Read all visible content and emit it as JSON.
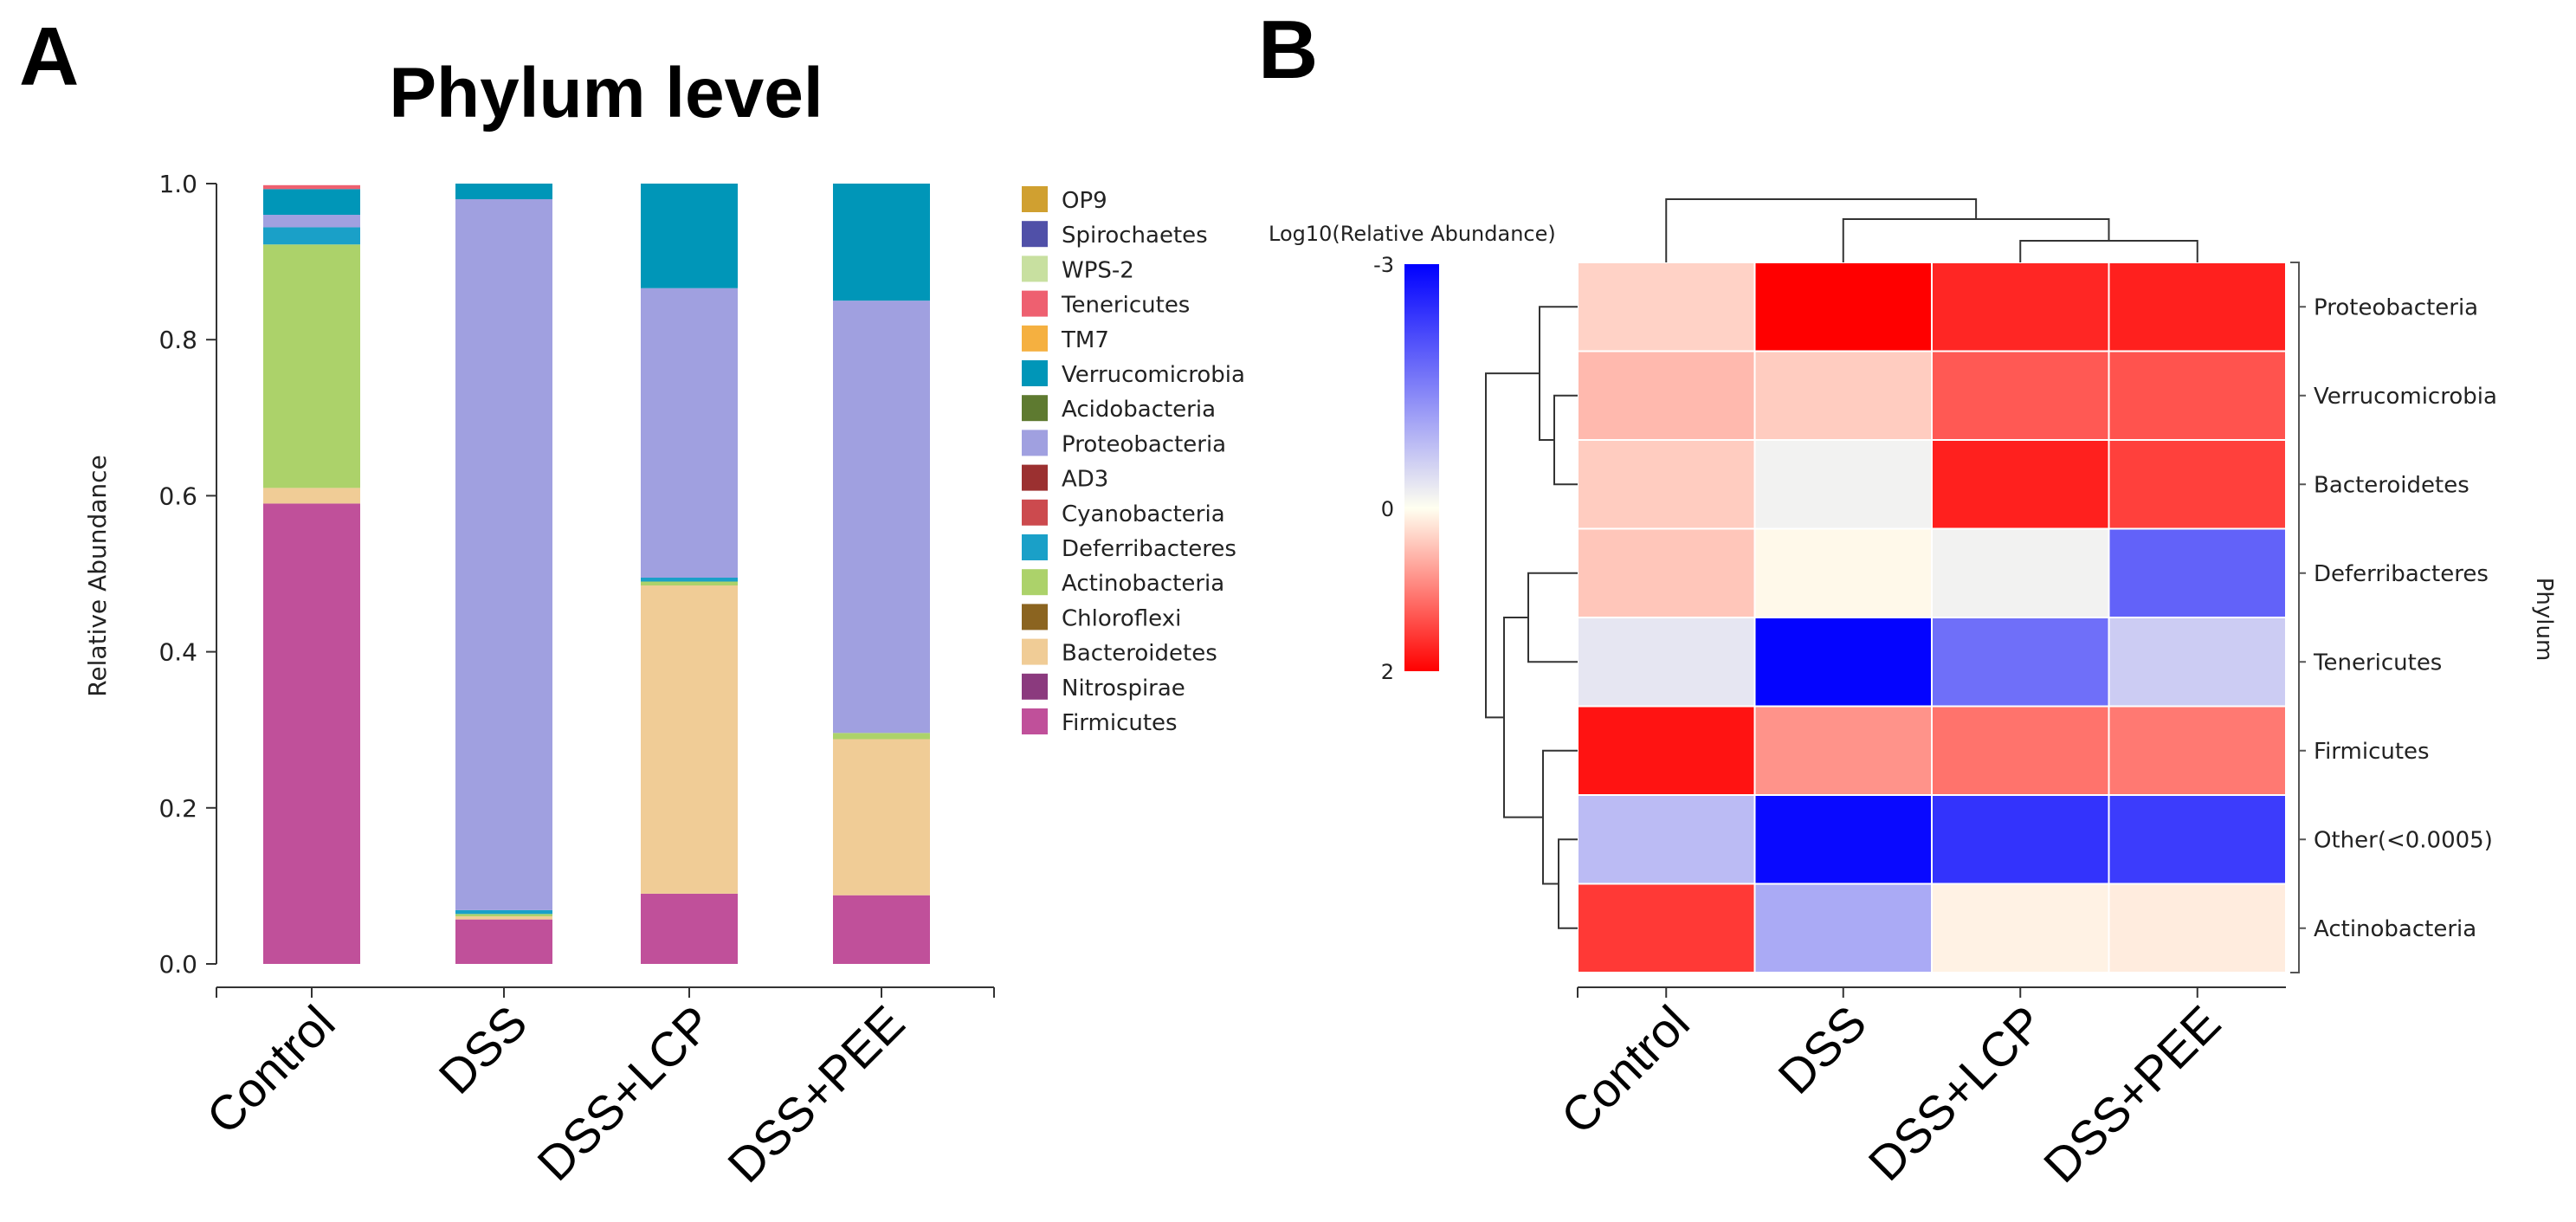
{
  "panel_a_letter": "A",
  "panel_b_letter": "B",
  "chart_data": [
    {
      "type": "bar",
      "stacked": true,
      "title": "Phylum level",
      "xlabel": "",
      "ylabel": "Relative Abundance",
      "ylim": [
        0,
        1.0
      ],
      "yticks": [
        "0.0",
        "0.2",
        "0.4",
        "0.6",
        "0.8",
        "1.0"
      ],
      "categories": [
        "Control",
        "DSS",
        "DSS+LCP",
        "DSS+PEE"
      ],
      "series": [
        {
          "name": "Firmicutes",
          "color": "#c0509a",
          "values": [
            0.59,
            0.057,
            0.09,
            0.088
          ]
        },
        {
          "name": "Nitrospirae",
          "color": "#8b3a7e",
          "values": [
            0.0,
            0.0,
            0.0,
            0.0
          ]
        },
        {
          "name": "Bacteroidetes",
          "color": "#f0cc96",
          "values": [
            0.02,
            0.004,
            0.395,
            0.2
          ]
        },
        {
          "name": "Chloroflexi",
          "color": "#8b6420",
          "values": [
            0.0,
            0.0,
            0.0,
            0.0
          ]
        },
        {
          "name": "Actinobacteria",
          "color": "#acd26a",
          "values": [
            0.312,
            0.003,
            0.005,
            0.008
          ]
        },
        {
          "name": "Deferribacteres",
          "color": "#1aa0c8",
          "values": [
            0.022,
            0.005,
            0.005,
            0.0
          ]
        },
        {
          "name": "Cyanobacteria",
          "color": "#cc4a4e",
          "values": [
            0.0,
            0.0,
            0.0,
            0.0
          ]
        },
        {
          "name": "AD3",
          "color": "#9b3030",
          "values": [
            0.0,
            0.0,
            0.0,
            0.0
          ]
        },
        {
          "name": "Proteobacteria",
          "color": "#a0a0e0",
          "values": [
            0.016,
            0.911,
            0.371,
            0.554
          ]
        },
        {
          "name": "Acidobacteria",
          "color": "#5e7a30",
          "values": [
            0.0,
            0.0,
            0.0,
            0.0
          ]
        },
        {
          "name": "Verrucomicrobia",
          "color": "#0096b8",
          "values": [
            0.033,
            0.02,
            0.134,
            0.15
          ]
        },
        {
          "name": "TM7",
          "color": "#f5b040",
          "values": [
            0.0,
            0.0,
            0.0,
            0.0
          ]
        },
        {
          "name": "Tenericutes",
          "color": "#ee6070",
          "values": [
            0.005,
            0.0,
            0.0,
            0.0
          ]
        },
        {
          "name": "WPS-2",
          "color": "#c8e0a0",
          "values": [
            0.0,
            0.0,
            0.0,
            0.0
          ]
        },
        {
          "name": "Spirochaetes",
          "color": "#5050a8",
          "values": [
            0.0,
            0.0,
            0.0,
            0.0
          ]
        },
        {
          "name": "OP9",
          "color": "#d0a030",
          "values": [
            0.0,
            0.0,
            0.0,
            0.0
          ]
        }
      ],
      "legend": [
        "OP9",
        "Spirochaetes",
        "WPS-2",
        "Tenericutes",
        "TM7",
        "Verrucomicrobia",
        "Acidobacteria",
        "Proteobacteria",
        "AD3",
        "Cyanobacteria",
        "Deferribacteres",
        "Actinobacteria",
        "Chloroflexi",
        "Bacteroidetes",
        "Nitrospirae",
        "Firmicutes"
      ],
      "legend_position": "right"
    },
    {
      "type": "heatmap",
      "colorbar_title": "Log10(Relative Abundance)",
      "colorbar_ticks": [
        "-3",
        "0",
        "2"
      ],
      "colorbar_range": [
        -3,
        2
      ],
      "colors": {
        "low": "#0000ff",
        "mid": "#fffff0",
        "high": "#ff0000"
      },
      "columns": [
        "Control",
        "DSS",
        "DSS+LCP",
        "DSS+PEE"
      ],
      "rows": [
        "Proteobacteria",
        "Verrucomicrobia",
        "Bacteroidetes",
        "Deferribacteres",
        "Tenericutes",
        "Firmicutes",
        "Other(<0.0005)",
        "Actinobacteria"
      ],
      "row_axis_label": "Phylum",
      "values": [
        [
          0.35,
          2.0,
          1.7,
          1.75
        ],
        [
          0.55,
          0.4,
          1.3,
          1.35
        ],
        [
          0.4,
          -0.15,
          1.75,
          1.5
        ],
        [
          0.45,
          0.05,
          -0.15,
          -1.85
        ],
        [
          -0.3,
          -2.95,
          -1.7,
          -0.6
        ],
        [
          1.85,
          0.85,
          1.1,
          1.05
        ],
        [
          -0.8,
          -2.9,
          -2.4,
          -2.3
        ],
        [
          1.55,
          -1.0,
          0.1,
          0.15
        ]
      ]
    }
  ]
}
